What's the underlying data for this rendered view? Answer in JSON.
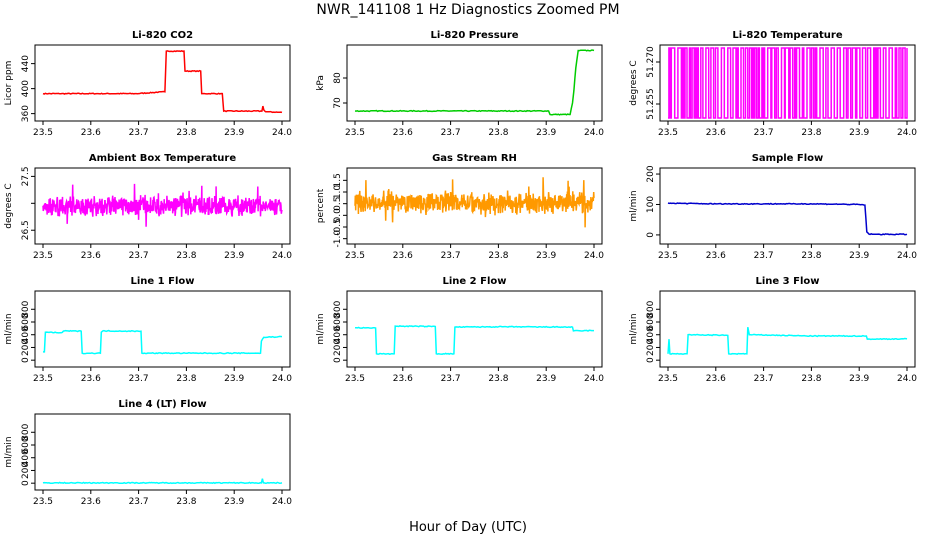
{
  "figure": {
    "title": "NWR_141108  1 Hz Diagnostics Zoomed PM",
    "xlabel": "Hour of Day (UTC)"
  },
  "chart_data": [
    {
      "type": "line",
      "title": "Li-820 CO2",
      "ylabel": "Licor ppm",
      "color": "#ff0000",
      "xlim": [
        23.5,
        24.0
      ],
      "ylim": [
        353,
        465
      ],
      "xticks": [
        "23.5",
        "23.6",
        "23.7",
        "23.8",
        "23.9",
        "24.0"
      ],
      "yticks": [
        360,
        400,
        440
      ],
      "x": [
        23.5,
        23.695,
        23.755,
        23.758,
        23.795,
        23.797,
        23.83,
        23.832,
        23.875,
        23.878,
        23.958,
        23.96,
        23.962,
        23.966,
        24.0
      ],
      "y": [
        392,
        392,
        395,
        460,
        460,
        428,
        428,
        392,
        392,
        364,
        364,
        372,
        366,
        363,
        362
      ]
    },
    {
      "type": "line",
      "title": "Li-820 Pressure",
      "ylabel": "kPa",
      "color": "#00cc00",
      "xlim": [
        23.5,
        24.0
      ],
      "ylim": [
        64,
        92
      ],
      "xticks": [
        "23.5",
        "23.6",
        "23.7",
        "23.8",
        "23.9",
        "24.0"
      ],
      "yticks": [
        70,
        80
      ],
      "x": [
        23.5,
        23.905,
        23.908,
        23.95,
        23.955,
        23.958,
        23.96,
        23.962,
        23.964,
        23.967,
        24.0
      ],
      "y": [
        66.8,
        66.8,
        65.4,
        65.4,
        70,
        75,
        80,
        84,
        87,
        91,
        91
      ]
    },
    {
      "type": "line",
      "title": "Li-820 Temperature",
      "ylabel": "degrees C",
      "color": "#ff00ff",
      "xlim": [
        23.5,
        24.0
      ],
      "ylim": [
        51.25,
        51.275
      ],
      "xticks": [
        "23.5",
        "23.6",
        "23.7",
        "23.8",
        "23.9",
        "24.0"
      ],
      "yticks": [
        51.255,
        51.27
      ],
      "ytick_labels": [
        "51.255",
        "51.270"
      ],
      "pattern": "toggle",
      "levels": [
        51.25,
        51.275
      ]
    },
    {
      "type": "line",
      "title": "Ambient Box Temperature",
      "ylabel": "degrees C",
      "color": "#ff00ff",
      "xlim": [
        23.5,
        24.0
      ],
      "ylim": [
        26.3,
        27.6
      ],
      "xticks": [
        "23.5",
        "23.6",
        "23.7",
        "23.8",
        "23.9",
        "24.0"
      ],
      "yticks": [
        26.5,
        27.0,
        27.5
      ],
      "ytick_labels": [
        "26.5",
        "",
        "27.5"
      ],
      "pattern": "noise",
      "center": 26.95,
      "amplitude": 0.22
    },
    {
      "type": "line",
      "title": "Gas Stream RH",
      "ylabel": "percent",
      "color": "#ff9900",
      "xlim": [
        23.5,
        24.0
      ],
      "ylim": [
        -1.1,
        1.9
      ],
      "xticks": [
        "23.5",
        "23.6",
        "23.7",
        "23.8",
        "23.9",
        "24.0"
      ],
      "yticks": [
        -1.0,
        -0.5,
        0.0,
        0.5,
        1.0,
        1.5
      ],
      "ytick_labels": [
        "-1.0",
        "-0.5",
        "0.0",
        "0.5",
        "1.0",
        "1.5"
      ],
      "pattern": "noise",
      "center": 0.55,
      "amplitude": 0.55
    },
    {
      "type": "line",
      "title": "Sample Flow",
      "ylabel": "ml/min",
      "color": "#0000cc",
      "xlim": [
        23.5,
        24.0
      ],
      "ylim": [
        -20,
        210
      ],
      "xticks": [
        "23.5",
        "23.6",
        "23.7",
        "23.8",
        "23.9",
        "24.0"
      ],
      "yticks": [
        0,
        100,
        200
      ],
      "x": [
        23.5,
        23.51,
        23.6,
        23.7,
        23.8,
        23.9,
        23.912,
        23.916,
        23.92,
        23.93,
        24.0
      ],
      "y": [
        105,
        104,
        102,
        102,
        102,
        100,
        98,
        10,
        3,
        2,
        2
      ]
    },
    {
      "type": "line",
      "title": "Line 1 Flow",
      "ylabel": "ml/min",
      "color": "#00ffff",
      "xlim": [
        23.5,
        24.0
      ],
      "ylim": [
        -60,
        1040
      ],
      "xticks": [
        "23.5",
        "23.6",
        "23.7",
        "23.8",
        "23.9",
        "24.0"
      ],
      "yticks": [
        0,
        200,
        400,
        600,
        800
      ],
      "x": [
        23.5,
        23.503,
        23.505,
        23.538,
        23.545,
        23.58,
        23.582,
        23.62,
        23.622,
        23.625,
        23.705,
        23.707,
        23.955,
        23.957,
        23.962,
        24.0
      ],
      "y": [
        130,
        130,
        440,
        430,
        460,
        455,
        110,
        110,
        440,
        460,
        455,
        110,
        110,
        300,
        360,
        370
      ]
    },
    {
      "type": "line",
      "title": "Line 2 Flow",
      "ylabel": "ml/min",
      "color": "#00ffff",
      "xlim": [
        23.5,
        24.0
      ],
      "ylim": [
        -60,
        1040
      ],
      "xticks": [
        "23.5",
        "23.6",
        "23.7",
        "23.8",
        "23.9",
        "24.0"
      ],
      "yticks": [
        0,
        200,
        400,
        600,
        800
      ],
      "x": [
        23.5,
        23.543,
        23.545,
        23.582,
        23.584,
        23.668,
        23.67,
        23.707,
        23.709,
        23.8,
        23.955,
        23.957,
        24.0
      ],
      "y": [
        510,
        505,
        100,
        100,
        535,
        530,
        100,
        100,
        520,
        525,
        520,
        460,
        465
      ]
    },
    {
      "type": "line",
      "title": "Line 3 Flow",
      "ylabel": "ml/min",
      "color": "#00ffff",
      "xlim": [
        23.5,
        24.0
      ],
      "ylim": [
        -60,
        1040
      ],
      "xticks": [
        "23.5",
        "23.6",
        "23.7",
        "23.8",
        "23.9",
        "24.0"
      ],
      "yticks": [
        0,
        200,
        400,
        600,
        800
      ],
      "x": [
        23.5,
        23.502,
        23.504,
        23.54,
        23.542,
        23.625,
        23.627,
        23.665,
        23.667,
        23.67,
        23.8,
        23.915,
        23.917,
        24.0
      ],
      "y": [
        100,
        330,
        100,
        100,
        400,
        390,
        100,
        100,
        520,
        400,
        380,
        380,
        330,
        335
      ]
    },
    {
      "type": "line",
      "title": "Line 4 (LT) Flow",
      "ylabel": "ml/min",
      "color": "#00ffff",
      "xlim": [
        23.5,
        24.0
      ],
      "ylim": [
        -60,
        1040
      ],
      "xticks": [
        "23.5",
        "23.6",
        "23.7",
        "23.8",
        "23.9",
        "24.0"
      ],
      "yticks": [
        0,
        200,
        400,
        600,
        800
      ],
      "x": [
        23.5,
        23.957,
        23.959,
        23.961,
        23.963,
        24.0
      ],
      "y": [
        5,
        5,
        70,
        5,
        5,
        5
      ]
    }
  ]
}
